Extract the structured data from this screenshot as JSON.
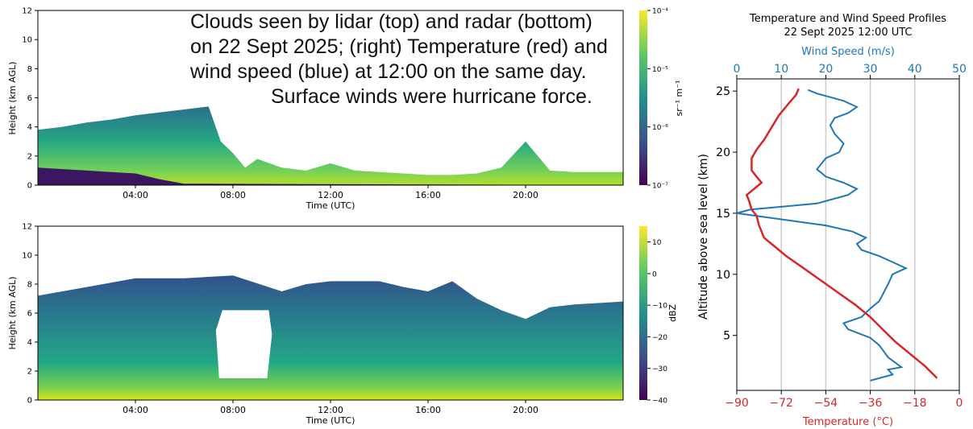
{
  "caption_lines": [
    "Clouds seen by lidar (top) and radar (bottom)",
    "on 22 Sept 2025; (right) Temperature (red) and",
    "wind speed (blue) at 12:00 on the same day.",
    "Surface winds were hurricane force."
  ],
  "colors": {
    "temperature": "#d62728",
    "wind": "#1f77b4",
    "axis": "#000000",
    "grid": "#cccccc"
  },
  "chart_data": [
    {
      "type": "heatmap",
      "panel": "lidar",
      "title": "",
      "xlabel": "Time (UTC)",
      "ylabel": "Height (km AGL)",
      "xticks": [
        "04:00",
        "08:00",
        "12:00",
        "16:00",
        "20:00"
      ],
      "xtick_hours": [
        4,
        8,
        12,
        16,
        20
      ],
      "xlim_hours": [
        0,
        24
      ],
      "ylim": [
        0,
        12
      ],
      "yticks": [
        0,
        2,
        4,
        6,
        8,
        10,
        12
      ],
      "colorbar_label": "sr⁻¹ m⁻¹",
      "colorbar_ticks": [
        "10⁻⁷",
        "10⁻⁶",
        "10⁻⁵",
        "10⁻⁴"
      ],
      "colormap": "viridis",
      "cloud_top_km": [
        [
          0,
          3.8
        ],
        [
          1,
          4.0
        ],
        [
          2,
          4.3
        ],
        [
          3,
          4.5
        ],
        [
          4,
          4.8
        ],
        [
          5,
          5.0
        ],
        [
          6,
          5.2
        ],
        [
          7,
          5.4
        ],
        [
          7.5,
          3.0
        ],
        [
          8,
          2.2
        ],
        [
          8.5,
          1.2
        ],
        [
          9,
          1.8
        ],
        [
          10,
          1.2
        ],
        [
          11,
          1.0
        ],
        [
          12,
          1.5
        ],
        [
          13,
          1.0
        ],
        [
          14,
          0.9
        ],
        [
          15,
          0.8
        ],
        [
          16,
          0.7
        ],
        [
          17,
          0.7
        ],
        [
          18,
          0.8
        ],
        [
          19,
          1.2
        ],
        [
          20,
          3.0
        ],
        [
          21,
          1.0
        ],
        [
          22,
          0.9
        ],
        [
          23,
          0.9
        ],
        [
          24,
          0.9
        ]
      ],
      "dark_layer_top_km": [
        [
          0,
          1.2
        ],
        [
          2,
          1.0
        ],
        [
          4,
          0.8
        ],
        [
          5,
          0.4
        ],
        [
          6,
          0.1
        ],
        [
          24,
          0.0
        ]
      ]
    },
    {
      "type": "heatmap",
      "panel": "radar",
      "title": "",
      "xlabel": "Time (UTC)",
      "ylabel": "Height (km AGL)",
      "xticks": [
        "04:00",
        "08:00",
        "12:00",
        "16:00",
        "20:00"
      ],
      "xtick_hours": [
        4,
        8,
        12,
        16,
        20
      ],
      "xlim_hours": [
        0,
        24
      ],
      "ylim": [
        0,
        12
      ],
      "yticks": [
        0,
        2,
        4,
        6,
        8,
        10,
        12
      ],
      "colorbar_label": "dBZ",
      "colorbar_ticks": [
        10,
        0,
        -10,
        -20,
        -30,
        -40
      ],
      "colorbar_range": [
        -40,
        15
      ],
      "colormap": "viridis",
      "echo_top_km": [
        [
          0,
          7.2
        ],
        [
          2,
          7.8
        ],
        [
          4,
          8.4
        ],
        [
          6,
          8.4
        ],
        [
          8,
          8.6
        ],
        [
          10,
          7.5
        ],
        [
          11,
          8.0
        ],
        [
          12,
          8.2
        ],
        [
          14,
          8.2
        ],
        [
          15,
          7.8
        ],
        [
          16,
          7.5
        ],
        [
          17,
          8.2
        ],
        [
          18,
          7.0
        ],
        [
          19,
          6.2
        ],
        [
          20,
          5.6
        ],
        [
          21,
          6.4
        ],
        [
          22,
          6.6
        ],
        [
          24,
          6.8
        ]
      ],
      "gap_region": {
        "hours": [
          7.3,
          9.6
        ],
        "km": [
          1.5,
          6.2
        ]
      }
    },
    {
      "type": "line",
      "panel": "profile",
      "title": "Temperature and Wind Speed Profiles",
      "subtitle": "22 Sept 2025 12:00 UTC",
      "ylabel": "Altitude above sea level (km)",
      "ylim": [
        0.5,
        26
      ],
      "yticks": [
        5,
        10,
        15,
        20,
        25
      ],
      "x_bottom": {
        "label": "Temperature (°C)",
        "range": [
          -90,
          0
        ],
        "ticks": [
          -90,
          -72,
          -54,
          -36,
          -18,
          0
        ]
      },
      "x_top": {
        "label": "Wind Speed (m/s)",
        "range": [
          0,
          50
        ],
        "ticks": [
          0,
          10,
          20,
          30,
          40,
          50
        ]
      },
      "grid": "vertical",
      "series": [
        {
          "name": "Temperature",
          "axis": "bottom",
          "points": [
            [
              -9,
              1.5
            ],
            [
              -14,
              2.5
            ],
            [
              -20,
              3.5
            ],
            [
              -26,
              4.5
            ],
            [
              -31,
              5.5
            ],
            [
              -36,
              6.5
            ],
            [
              -42,
              7.5
            ],
            [
              -49,
              8.5
            ],
            [
              -56,
              9.5
            ],
            [
              -63,
              10.5
            ],
            [
              -70,
              11.5
            ],
            [
              -76,
              12.5
            ],
            [
              -79,
              13.0
            ],
            [
              -80,
              13.5
            ],
            [
              -81,
              14.0
            ],
            [
              -82,
              14.8
            ],
            [
              -84,
              15.3
            ],
            [
              -85,
              16.0
            ],
            [
              -86,
              16.5
            ],
            [
              -83,
              17.0
            ],
            [
              -80,
              17.5
            ],
            [
              -82,
              18.0
            ],
            [
              -84,
              18.5
            ],
            [
              -84,
              19.5
            ],
            [
              -82,
              20.2
            ],
            [
              -79,
              21.0
            ],
            [
              -76,
              22.0
            ],
            [
              -73,
              23.0
            ],
            [
              -69,
              24.0
            ],
            [
              -66,
              24.7
            ],
            [
              -65,
              25.2
            ]
          ]
        },
        {
          "name": "Wind Speed",
          "axis": "top",
          "points": [
            [
              30,
              1.3
            ],
            [
              35,
              1.8
            ],
            [
              34,
              2.2
            ],
            [
              37,
              2.4
            ],
            [
              34,
              3.2
            ],
            [
              33,
              3.7
            ],
            [
              32,
              4.2
            ],
            [
              30,
              4.8
            ],
            [
              25,
              5.5
            ],
            [
              24,
              6.0
            ],
            [
              28,
              6.5
            ],
            [
              30,
              7.2
            ],
            [
              32,
              7.8
            ],
            [
              33,
              8.5
            ],
            [
              34,
              9.2
            ],
            [
              35,
              10.0
            ],
            [
              38,
              10.5
            ],
            [
              35,
              11.0
            ],
            [
              32,
              11.5
            ],
            [
              28,
              12.0
            ],
            [
              27,
              12.5
            ],
            [
              29,
              13.0
            ],
            [
              26,
              13.5
            ],
            [
              20,
              14.0
            ],
            [
              10,
              14.5
            ],
            [
              0,
              15.0
            ],
            [
              3,
              15.3
            ],
            [
              18,
              15.8
            ],
            [
              25,
              16.5
            ],
            [
              27,
              17.0
            ],
            [
              24,
              17.5
            ],
            [
              20,
              18.0
            ],
            [
              18,
              18.6
            ],
            [
              20,
              19.5
            ],
            [
              23,
              20.0
            ],
            [
              24,
              20.7
            ],
            [
              22,
              21.5
            ],
            [
              21,
              22.2
            ],
            [
              22,
              22.8
            ],
            [
              25,
              23.2
            ],
            [
              27,
              23.7
            ],
            [
              24,
              24.2
            ],
            [
              20,
              24.6
            ],
            [
              18,
              24.8
            ],
            [
              16,
              25.1
            ]
          ]
        }
      ]
    }
  ]
}
